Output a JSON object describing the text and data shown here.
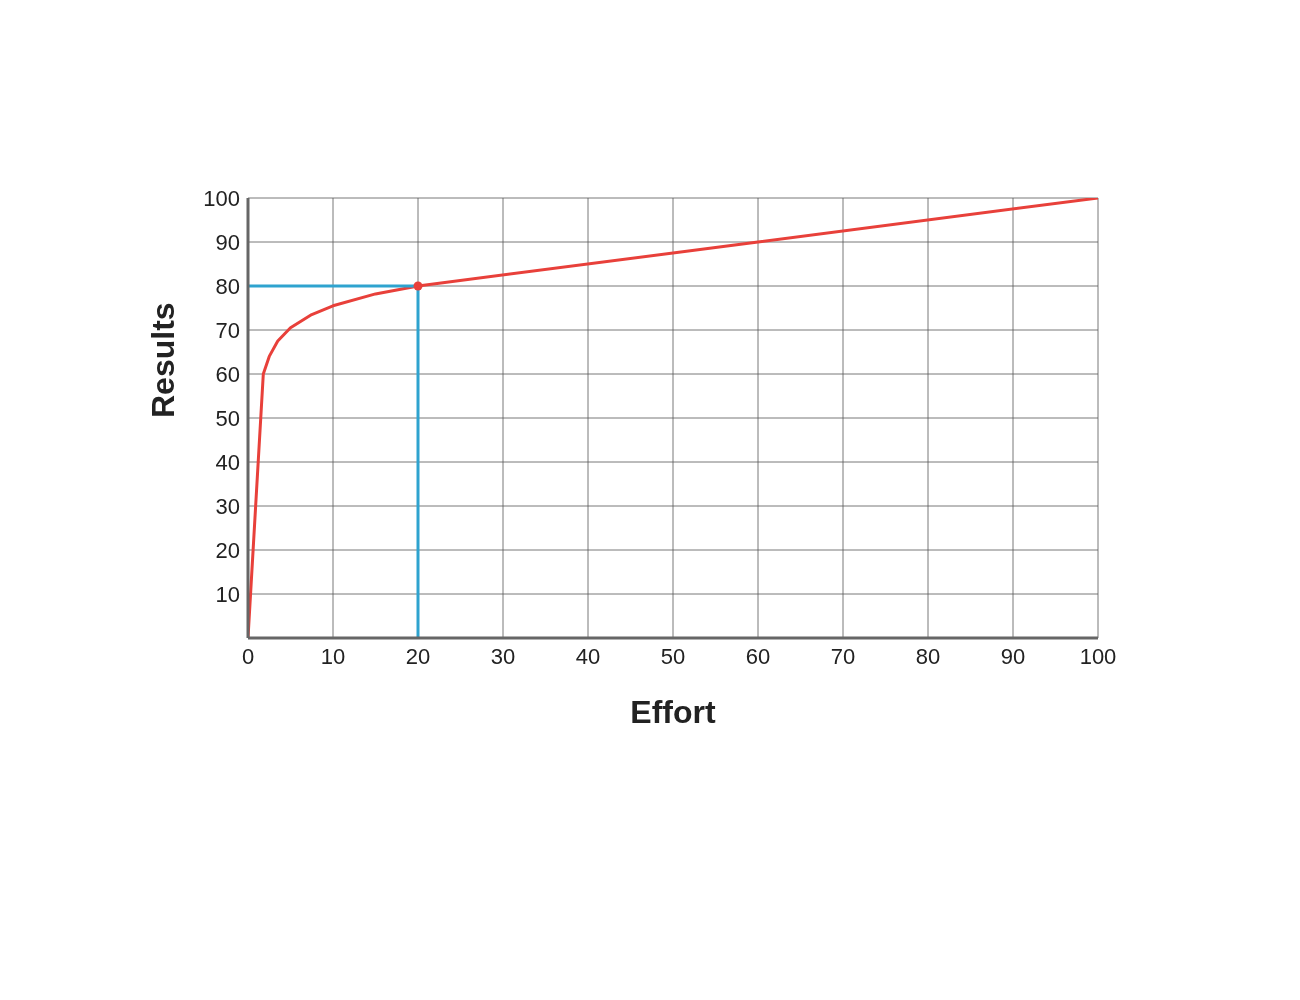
{
  "chart_data": {
    "type": "line",
    "xlabel": "Effort",
    "ylabel": "Results",
    "xlim": [
      0,
      100
    ],
    "ylim": [
      0,
      100
    ],
    "xticks": [
      0,
      10,
      20,
      30,
      40,
      50,
      60,
      70,
      80,
      90,
      100
    ],
    "yticks": [
      {
        "value": 0,
        "label": null
      },
      10,
      20,
      30,
      40,
      50,
      60,
      70,
      80,
      90,
      100
    ],
    "grid": true,
    "series": [
      {
        "type": "line",
        "color": "#e8403a",
        "marker": "none",
        "line_style": "solid",
        "x": [
          0,
          1.8,
          2.5,
          3.5,
          5,
          7.5,
          10,
          15,
          20,
          60,
          100
        ],
        "values": [
          0,
          60,
          64,
          67.5,
          70.5,
          73.5,
          75.5,
          78.2,
          80,
          90,
          100
        ]
      },
      {
        "type": "line",
        "color": "#2ea3cf",
        "marker": "none",
        "line_style": "solid",
        "x": [
          0,
          20,
          20
        ],
        "values": [
          80,
          80,
          0
        ]
      },
      {
        "type": "scatter",
        "color": "#e8403a",
        "marker": "circle",
        "x": [
          20
        ],
        "values": [
          80
        ]
      }
    ]
  }
}
